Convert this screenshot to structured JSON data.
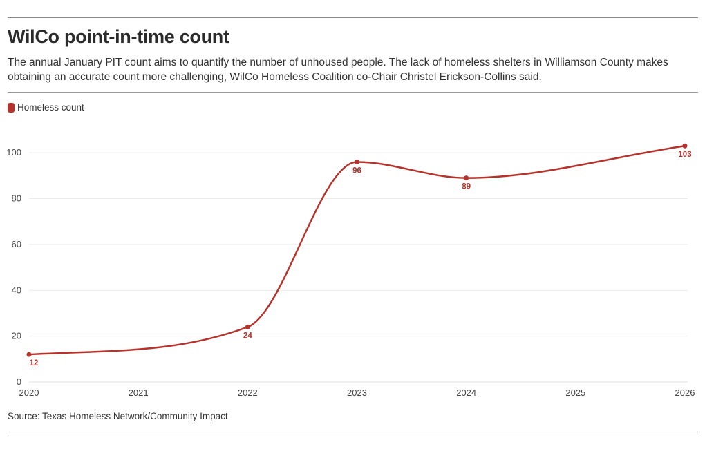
{
  "header": {
    "title": "WilCo point-in-time count",
    "subtitle": "The annual January PIT count aims to quantify the number of unhoused people. The lack of homeless shelters in Williamson County makes obtaining an accurate count more challenging, WilCo Homeless Coalition co-Chair Christel Erickson-Collins said."
  },
  "footer": {
    "source": "Source: Texas Homeless Network/Community Impact"
  },
  "colors": {
    "series": "#b5332b",
    "grid": "#ebebeb",
    "axis_text": "#444444"
  },
  "chart_data": {
    "type": "line",
    "title": "WilCo point-in-time count",
    "xlabel": "",
    "ylabel": "",
    "x_ticks": [
      "2020",
      "2021",
      "2022",
      "2023",
      "2024",
      "2025",
      "2026"
    ],
    "y_ticks": [
      0,
      20,
      40,
      60,
      80,
      100
    ],
    "xlim": [
      2020,
      2026
    ],
    "ylim": [
      0,
      110
    ],
    "grid": true,
    "legend_position": "top-left",
    "series": [
      {
        "name": "Homeless count",
        "x": [
          2020,
          2022,
          2023,
          2024,
          2026
        ],
        "y": [
          12,
          24,
          96,
          89,
          103
        ],
        "labels": [
          "12",
          "24",
          "96",
          "89",
          "103"
        ]
      }
    ]
  }
}
